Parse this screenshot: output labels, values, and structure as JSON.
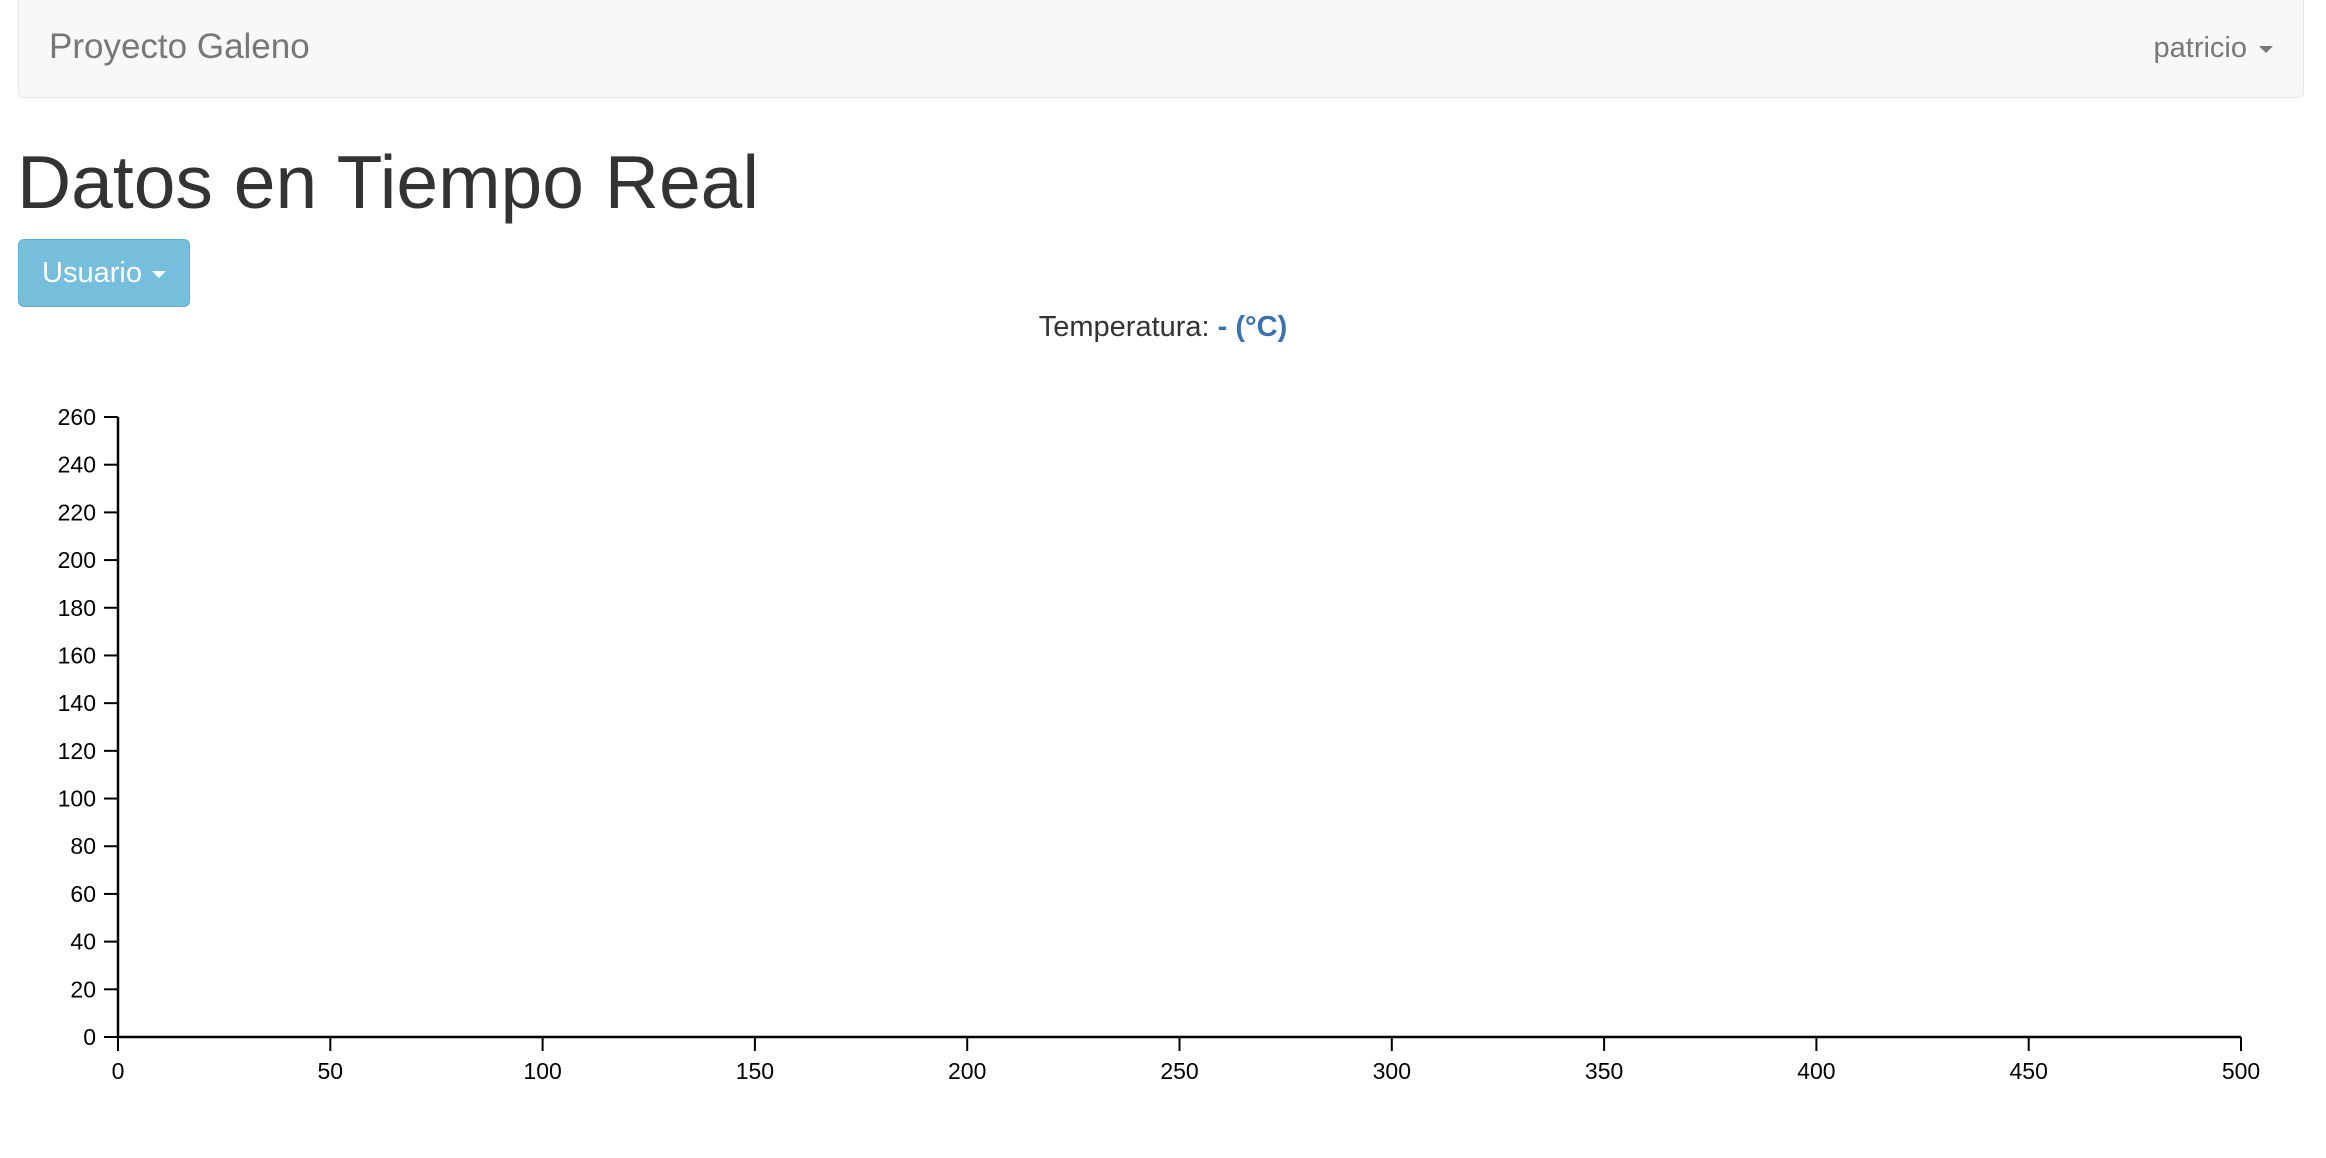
{
  "navbar": {
    "brand": "Proyecto Galeno",
    "user": "patricio"
  },
  "page": {
    "title": "Datos en Tiempo Real"
  },
  "usuario_button": {
    "label": "Usuario"
  },
  "temperature": {
    "label": "Temperatura:",
    "value": "- (°C)",
    "value_color": "#3a72b0"
  },
  "colors": {
    "button": "#76bfdc",
    "navbar": "#f8f8f8"
  },
  "chart_data": {
    "type": "line",
    "series": [],
    "xlim": [
      0,
      500
    ],
    "ylim": [
      0,
      260
    ],
    "x_ticks": [
      0,
      50,
      100,
      150,
      200,
      250,
      300,
      350,
      400,
      450,
      500
    ],
    "y_ticks": [
      0,
      20,
      40,
      60,
      80,
      100,
      120,
      140,
      160,
      180,
      200,
      220,
      240,
      260
    ],
    "grid": false
  }
}
